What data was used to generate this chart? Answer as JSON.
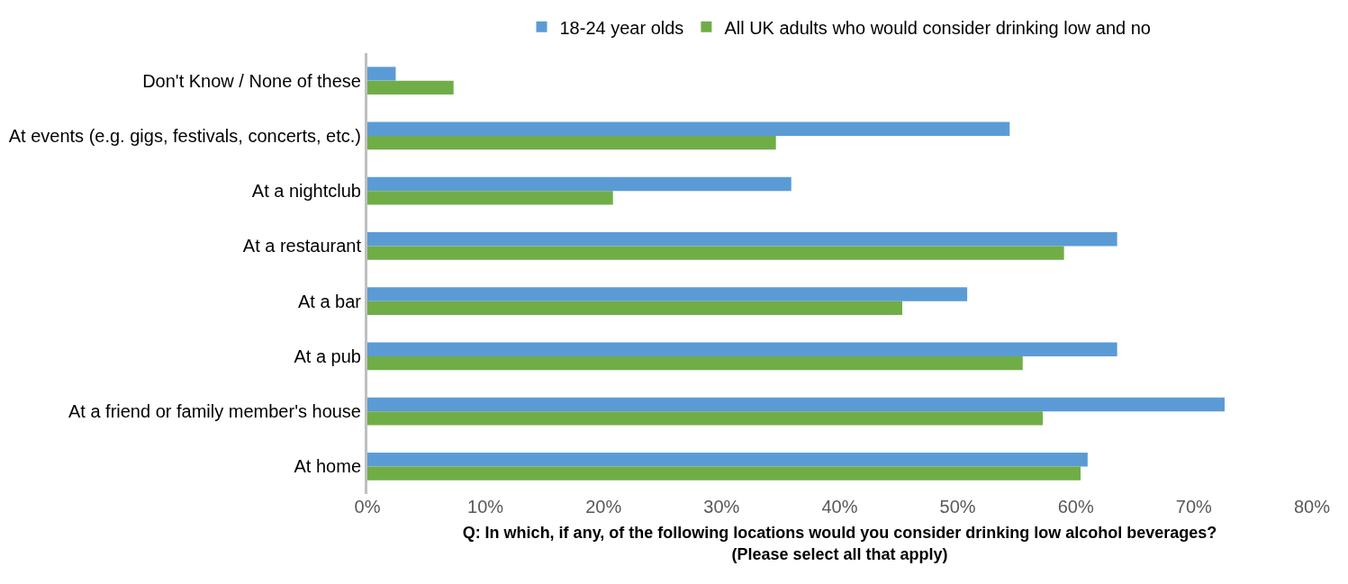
{
  "chart_data": {
    "type": "bar",
    "orientation": "horizontal",
    "xlabel": "Q: In which, if any, of the following locations would you consider drinking low alcohol beverages?\n(Please select all that apply)",
    "categories": [
      "Don't Know / None of these",
      "At events (e.g. gigs, festivals, concerts, etc.)",
      "At a nightclub",
      "At a restaurant",
      "At a bar",
      "At a pub",
      "At a friend or family member's house",
      "At home"
    ],
    "series": [
      {
        "name": "18-24 year olds",
        "color": "#5b9bd5",
        "values": [
          2.4,
          54.4,
          35.9,
          63.5,
          50.8,
          63.5,
          72.6,
          61.0
        ]
      },
      {
        "name": "All UK adults who would consider drinking low and no",
        "color": "#70ad47",
        "values": [
          7.3,
          34.6,
          20.8,
          59.0,
          45.3,
          55.5,
          57.2,
          60.4
        ]
      }
    ],
    "xlim": [
      0,
      80
    ],
    "xticks": [
      {
        "value": 0,
        "label": "0%"
      },
      {
        "value": 10,
        "label": "10%"
      },
      {
        "value": 20,
        "label": "20%"
      },
      {
        "value": 30,
        "label": "30%"
      },
      {
        "value": 40,
        "label": "40%"
      },
      {
        "value": 50,
        "label": "50%"
      },
      {
        "value": 60,
        "label": "60%"
      },
      {
        "value": 70,
        "label": "70%"
      },
      {
        "value": 80,
        "label": "80%"
      }
    ],
    "grid": false,
    "legend": "top"
  }
}
